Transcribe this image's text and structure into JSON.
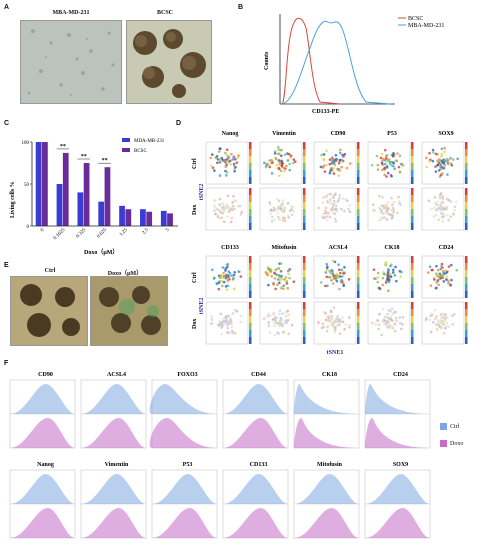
{
  "panels": {
    "A": "A",
    "B": "B",
    "C": "C",
    "D": "D",
    "E": "E",
    "F": "F"
  },
  "panel_a": {
    "left_title": "MBA-MD-231",
    "right_title": "BCSC"
  },
  "panel_b": {
    "xlabel": "CD133-PE",
    "ylabel": "Counts",
    "legend": [
      "BCSC",
      "MBA-MD-231"
    ],
    "colors": {
      "BCSC": "#d64a3a",
      "MBA-MD-231": "#4a9fd8"
    }
  },
  "chart_data": {
    "type": "bar",
    "categories": [
      "0",
      "0.1625",
      "0.325",
      "0.625",
      "1.25",
      "2.5",
      "5"
    ],
    "series": [
      {
        "name": "MDA-MB-231",
        "values": [
          100,
          50,
          40,
          29,
          24,
          20,
          18
        ],
        "color": "#3b3bd6"
      },
      {
        "name": "BCSC",
        "values": [
          100,
          87,
          75,
          70,
          20,
          17,
          15
        ],
        "color": "#6a2c9a"
      }
    ],
    "xlabel": "Doxo（μM）",
    "ylabel": "Living cells %",
    "ylim": [
      0,
      100
    ],
    "yticks": [
      "0",
      "50",
      "100"
    ],
    "significance": [
      "**",
      "**",
      "**"
    ],
    "legend_position": "top-right"
  },
  "panel_d": {
    "row1_markers": [
      "Nanog",
      "Vimentin",
      "CD90",
      "P53",
      "SOX9"
    ],
    "row2_markers": [
      "CD133",
      "Mitofusin",
      "ACSL4",
      "CK18",
      "CD24"
    ],
    "row_labels": [
      "Ctrl",
      "Dox"
    ],
    "axis_x": "tSNE1",
    "axis_y": "tSNE2"
  },
  "panel_e": {
    "left_title": "Ctrl",
    "right_title": "Doxo（μM）"
  },
  "panel_f": {
    "row1": [
      "CD90",
      "ACSL4",
      "FOXO3",
      "CD44",
      "CK18",
      "CD24"
    ],
    "row2": [
      "Nanog",
      "Vimentin",
      "P53",
      "CD133",
      "Mitofusin",
      "SOX9"
    ],
    "legend": [
      "Ctrl",
      "Doxo"
    ],
    "colors": {
      "Ctrl": "#7ea7e0",
      "Doxo": "#c56cc8"
    }
  }
}
